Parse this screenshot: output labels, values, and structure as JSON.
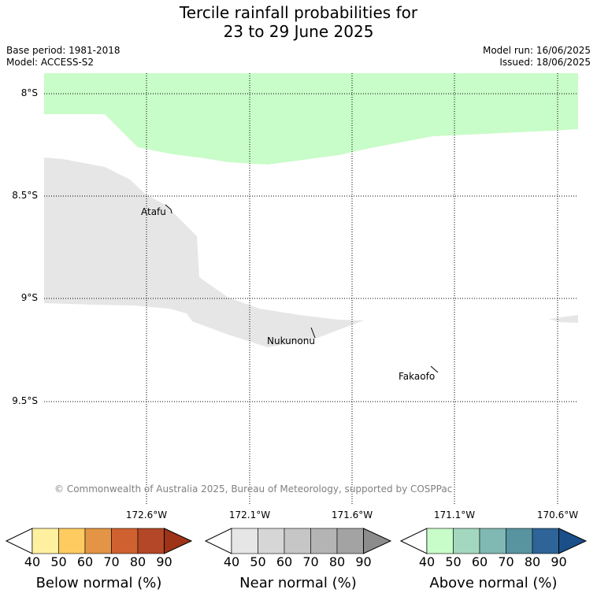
{
  "title": {
    "line1": "Tercile rainfall probabilities for",
    "line2": "23 to 29 June 2025"
  },
  "meta": {
    "base_period": "Base period: 1981-2018",
    "model": "Model: ACCESS-S2",
    "model_run": "Model run: 16/06/2025",
    "issued": "Issued: 18/06/2025"
  },
  "map": {
    "lat_labels": [
      "8°S",
      "8.5°S",
      "9°S",
      "9.5°S"
    ],
    "lon_labels": [
      "172.6°W",
      "172.1°W",
      "171.6°W",
      "171.1°W",
      "170.6°W"
    ],
    "places": [
      "Atafu",
      "Nukunonu",
      "Fakaofo"
    ],
    "copyright": "© Commonwealth of Australia 2025, Bureau of Meteorology, supported by COSPPac",
    "colors": {
      "above_40_50": "#c8fcc8",
      "near_40_50": "#e6e6e6"
    }
  },
  "colorbars": [
    {
      "label": "Below normal (%)",
      "ticks": [
        "40",
        "50",
        "60",
        "70",
        "80",
        "90"
      ],
      "colors": [
        "#fff0a0",
        "#fecb60",
        "#e39444",
        "#cf6130",
        "#b34727",
        "#9e3318"
      ]
    },
    {
      "label": "Near normal (%)",
      "ticks": [
        "40",
        "50",
        "60",
        "70",
        "80",
        "90"
      ],
      "colors": [
        "#e6e6e6",
        "#d6d6d6",
        "#c6c6c6",
        "#b4b4b4",
        "#a3a3a3",
        "#8c8c8c"
      ]
    },
    {
      "label": "Above normal (%)",
      "ticks": [
        "40",
        "50",
        "60",
        "70",
        "80",
        "90"
      ],
      "colors": [
        "#c8fcc8",
        "#a4d8be",
        "#80b8b4",
        "#5893a0",
        "#2e6497",
        "#1a4f8a"
      ]
    }
  ]
}
